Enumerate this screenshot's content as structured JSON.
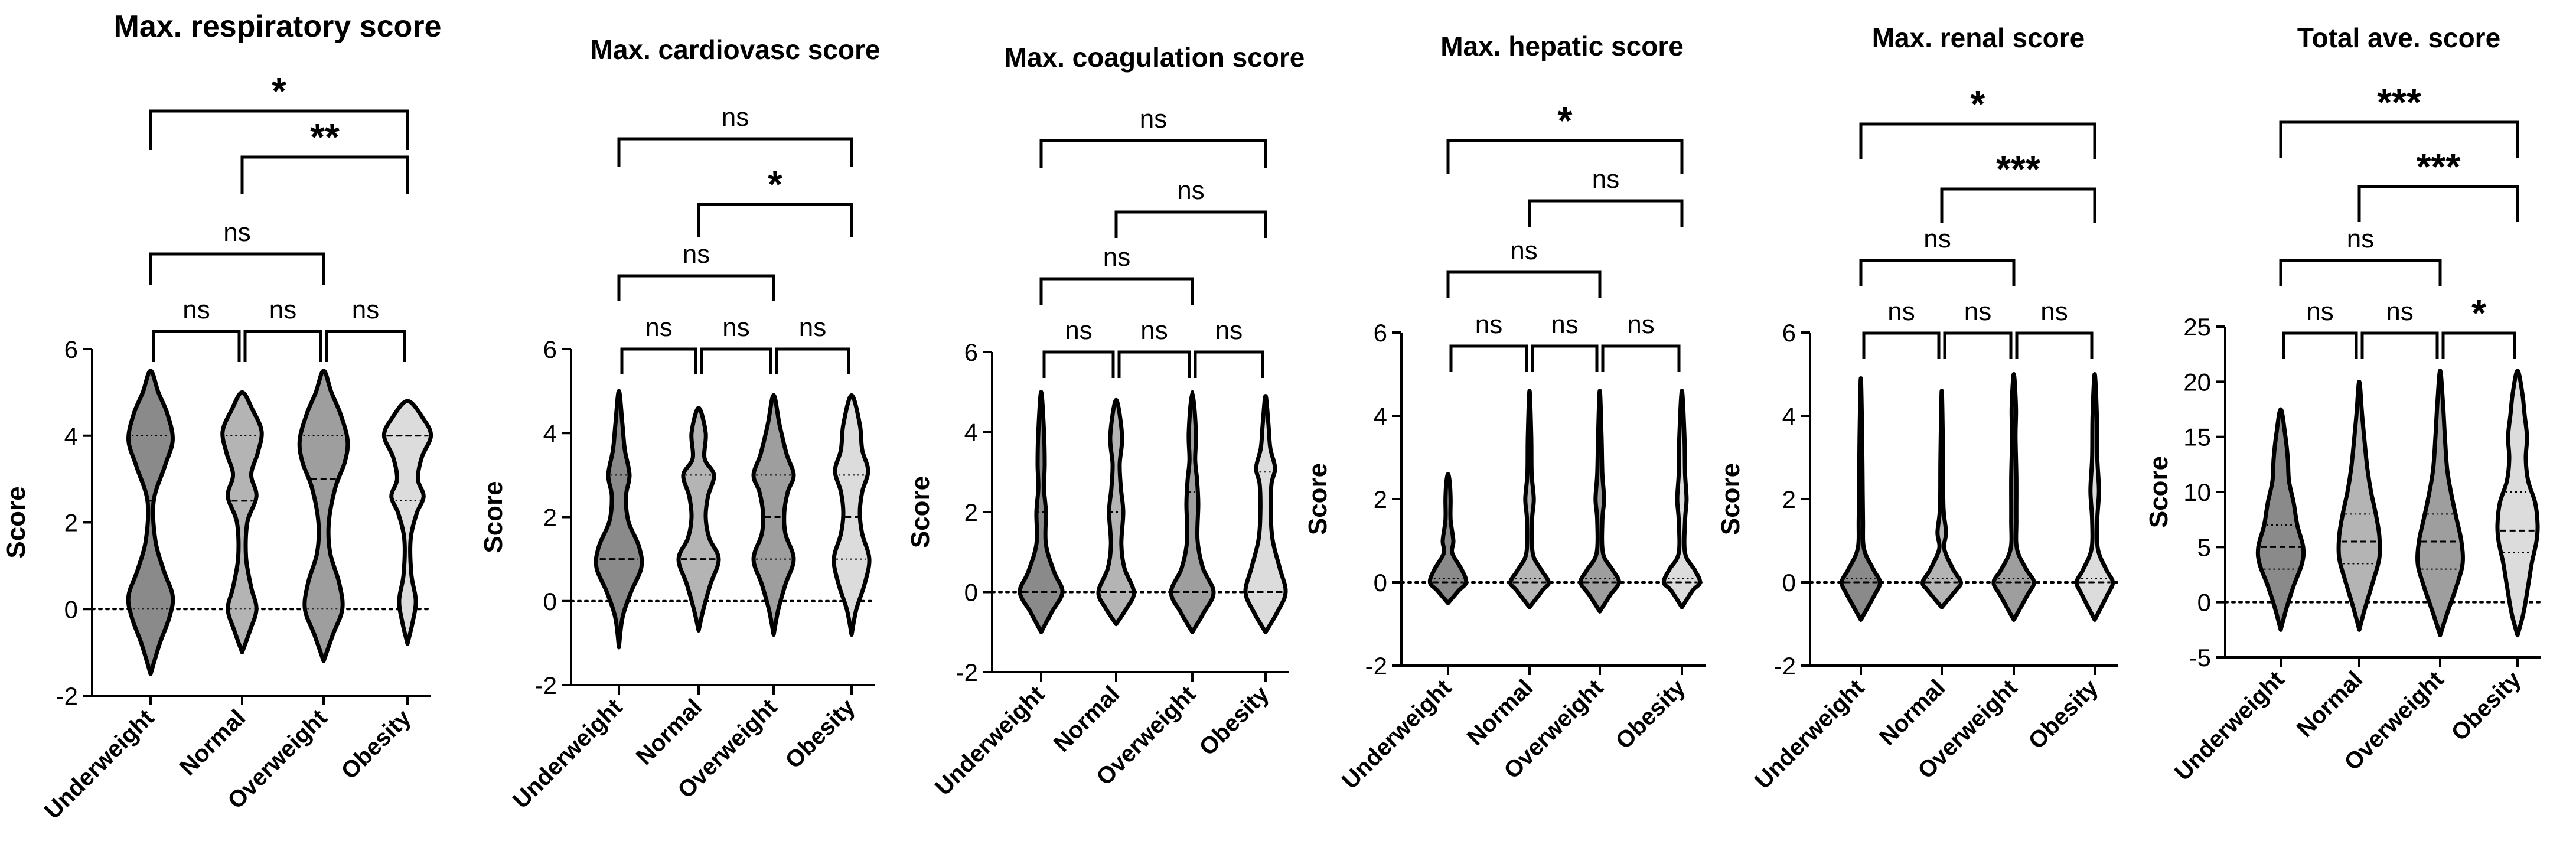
{
  "chart_data": [
    {
      "type": "violin",
      "title": "Max. respiratory score",
      "ylabel": "Score",
      "ylim": [
        -2,
        6
      ],
      "yticks": [
        "-2",
        "0",
        "2",
        "4",
        "6"
      ],
      "categories": [
        "Underweight",
        "Normal",
        "Overweight",
        "Obesity"
      ],
      "medians": [
        2.5,
        2.5,
        3.0,
        4.0
      ],
      "comparisons": [
        {
          "pair": [
            "Underweight",
            "Obesity"
          ],
          "label": "*"
        },
        {
          "pair": [
            "Normal",
            "Obesity"
          ],
          "label": "**"
        },
        {
          "pair": [
            "Underweight",
            "Overweight"
          ],
          "label": "ns"
        },
        {
          "pair": [
            "Underweight",
            "Normal"
          ],
          "label": "ns"
        },
        {
          "pair": [
            "Normal",
            "Overweight"
          ],
          "label": "ns"
        },
        {
          "pair": [
            "Overweight",
            "Obesity"
          ],
          "label": "ns"
        }
      ]
    },
    {
      "type": "violin",
      "title": "Max. cardiovasc score",
      "ylabel": "Score",
      "ylim": [
        -2,
        6
      ],
      "yticks": [
        "-2",
        "0",
        "2",
        "4",
        "6"
      ],
      "categories": [
        "Underweight",
        "Normal",
        "Overweight",
        "Obesity"
      ],
      "medians": [
        1.0,
        1.0,
        2.0,
        2.0
      ],
      "comparisons": [
        {
          "pair": [
            "Underweight",
            "Obesity"
          ],
          "label": "ns"
        },
        {
          "pair": [
            "Normal",
            "Obesity"
          ],
          "label": "*"
        },
        {
          "pair": [
            "Underweight",
            "Overweight"
          ],
          "label": "ns"
        },
        {
          "pair": [
            "Underweight",
            "Normal"
          ],
          "label": "ns"
        },
        {
          "pair": [
            "Normal",
            "Overweight"
          ],
          "label": "ns"
        },
        {
          "pair": [
            "Overweight",
            "Obesity"
          ],
          "label": "ns"
        }
      ]
    },
    {
      "type": "violin",
      "title": "Max. coagulation score",
      "ylabel": "Score",
      "ylim": [
        -2,
        6
      ],
      "yticks": [
        "-2",
        "0",
        "2",
        "4",
        "6"
      ],
      "categories": [
        "Underweight",
        "Normal",
        "Overweight",
        "Obesity"
      ],
      "medians": [
        0,
        0,
        0,
        0
      ],
      "comparisons": [
        {
          "pair": [
            "Underweight",
            "Obesity"
          ],
          "label": "ns"
        },
        {
          "pair": [
            "Normal",
            "Obesity"
          ],
          "label": "ns"
        },
        {
          "pair": [
            "Underweight",
            "Overweight"
          ],
          "label": "ns"
        },
        {
          "pair": [
            "Underweight",
            "Normal"
          ],
          "label": "ns"
        },
        {
          "pair": [
            "Normal",
            "Overweight"
          ],
          "label": "ns"
        },
        {
          "pair": [
            "Overweight",
            "Obesity"
          ],
          "label": "ns"
        }
      ]
    },
    {
      "type": "violin",
      "title": "Max. hepatic score",
      "ylabel": "Score",
      "ylim": [
        -2,
        6
      ],
      "yticks": [
        "-2",
        "0",
        "2",
        "4",
        "6"
      ],
      "categories": [
        "Underweight",
        "Normal",
        "Overweight",
        "Obesity"
      ],
      "medians": [
        0,
        0,
        0,
        0
      ],
      "comparisons": [
        {
          "pair": [
            "Underweight",
            "Obesity"
          ],
          "label": "*"
        },
        {
          "pair": [
            "Normal",
            "Obesity"
          ],
          "label": "ns"
        },
        {
          "pair": [
            "Underweight",
            "Overweight"
          ],
          "label": "ns"
        },
        {
          "pair": [
            "Underweight",
            "Normal"
          ],
          "label": "ns"
        },
        {
          "pair": [
            "Normal",
            "Overweight"
          ],
          "label": "ns"
        },
        {
          "pair": [
            "Overweight",
            "Obesity"
          ],
          "label": "ns"
        }
      ]
    },
    {
      "type": "violin",
      "title": "Max. renal score",
      "ylabel": "Score",
      "ylim": [
        -2,
        6
      ],
      "yticks": [
        "-2",
        "0",
        "2",
        "4",
        "6"
      ],
      "categories": [
        "Underweight",
        "Normal",
        "Overweight",
        "Obesity"
      ],
      "medians": [
        0,
        0,
        0,
        0
      ],
      "comparisons": [
        {
          "pair": [
            "Underweight",
            "Obesity"
          ],
          "label": "*"
        },
        {
          "pair": [
            "Normal",
            "Obesity"
          ],
          "label": "***"
        },
        {
          "pair": [
            "Underweight",
            "Overweight"
          ],
          "label": "ns"
        },
        {
          "pair": [
            "Underweight",
            "Normal"
          ],
          "label": "ns"
        },
        {
          "pair": [
            "Normal",
            "Overweight"
          ],
          "label": "ns"
        },
        {
          "pair": [
            "Overweight",
            "Obesity"
          ],
          "label": "ns"
        }
      ]
    },
    {
      "type": "violin",
      "title": "Total ave. score",
      "ylabel": "Score",
      "ylim": [
        -5,
        25
      ],
      "yticks": [
        "-5",
        "0",
        "5",
        "10",
        "15",
        "20",
        "25"
      ],
      "categories": [
        "Underweight",
        "Normal",
        "Overweight",
        "Obesity"
      ],
      "medians": [
        5.0,
        5.5,
        5.5,
        6.5
      ],
      "comparisons": [
        {
          "pair": [
            "Underweight",
            "Obesity"
          ],
          "label": "***"
        },
        {
          "pair": [
            "Normal",
            "Obesity"
          ],
          "label": "***"
        },
        {
          "pair": [
            "Underweight",
            "Overweight"
          ],
          "label": "ns"
        },
        {
          "pair": [
            "Underweight",
            "Normal"
          ],
          "label": "ns"
        },
        {
          "pair": [
            "Normal",
            "Overweight"
          ],
          "label": "ns"
        },
        {
          "pair": [
            "Overweight",
            "Obesity"
          ],
          "label": "*"
        }
      ]
    }
  ],
  "colors": {
    "violins": [
      "#8a8a8a",
      "#b4b4b4",
      "#9e9e9e",
      "#dcdcdc"
    ],
    "stroke": "#000000"
  }
}
